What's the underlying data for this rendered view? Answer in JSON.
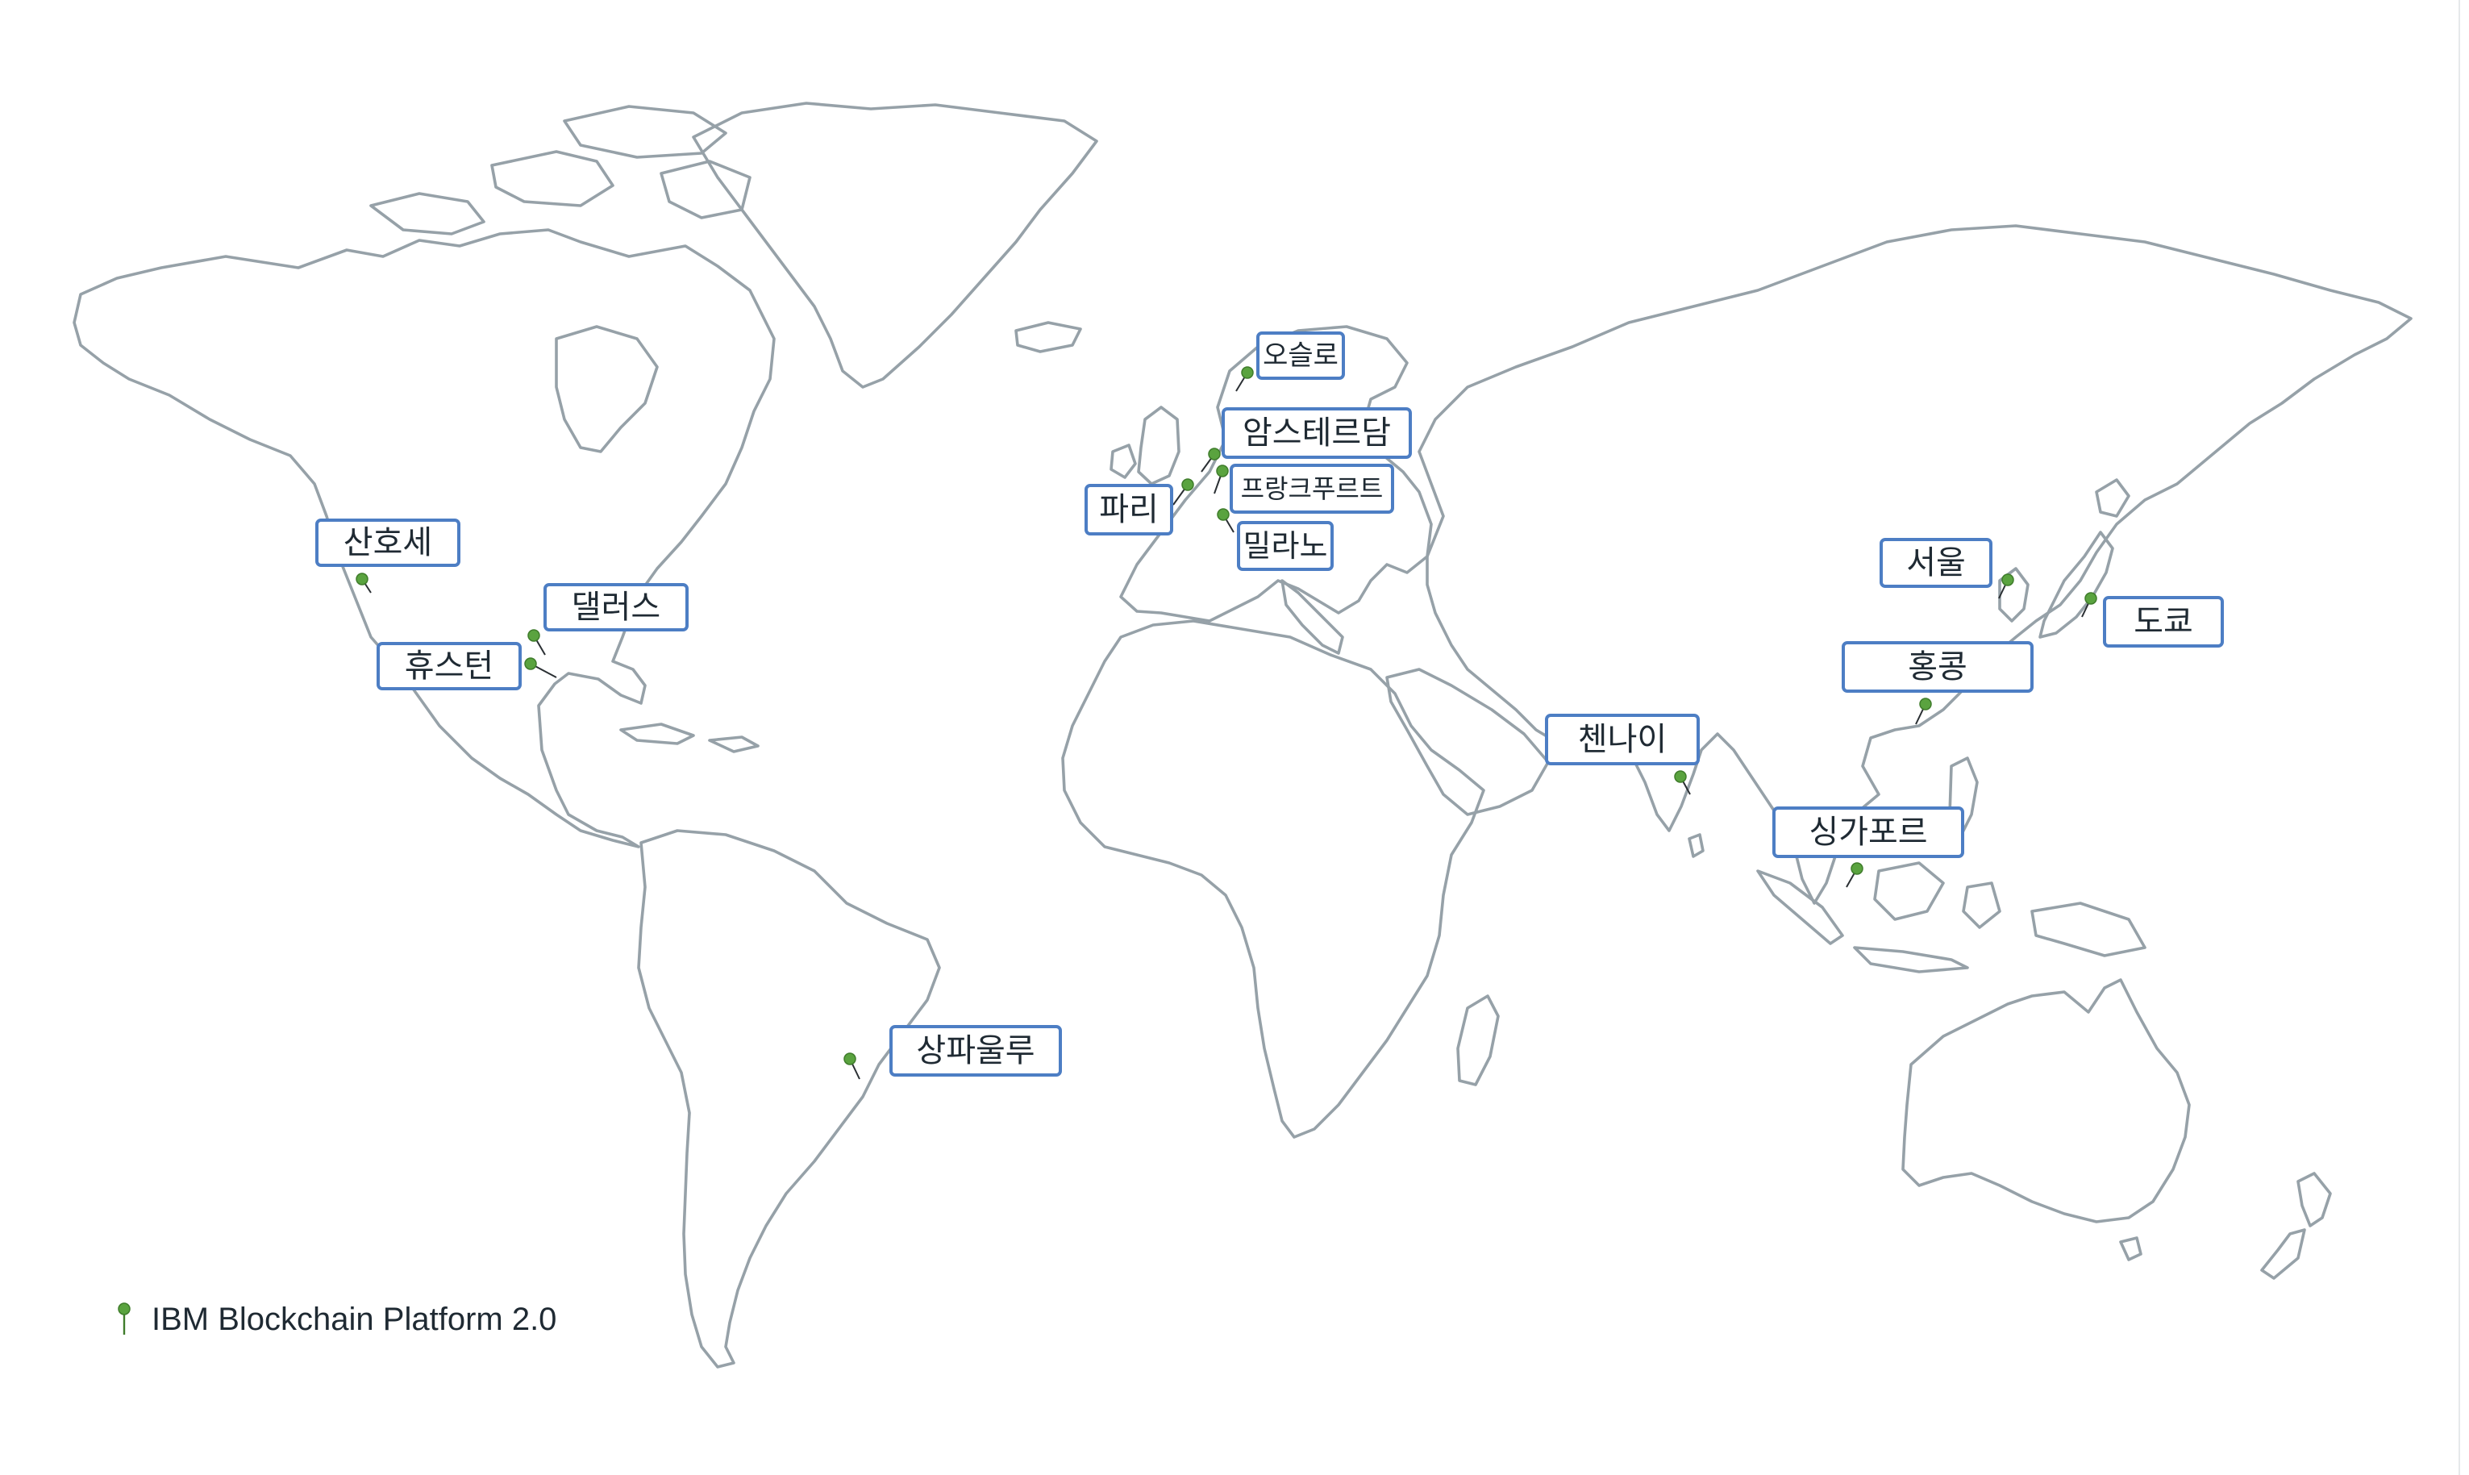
{
  "legend": {
    "label": "IBM Blockchain Platform 2.0",
    "marker_icon": "pin-icon",
    "marker_color": "#5aa33f"
  },
  "colors": {
    "land_outline": "#96a1a8",
    "label_border": "#4d7ec4",
    "pin": "#5aa33f",
    "text": "#1f2a33"
  },
  "cities": [
    {
      "id": "san-jose",
      "name": "산호세"
    },
    {
      "id": "dallas",
      "name": "댈러스"
    },
    {
      "id": "houston",
      "name": "휴스턴"
    },
    {
      "id": "sao-paulo",
      "name": "상파울루"
    },
    {
      "id": "oslo",
      "name": "오슬로"
    },
    {
      "id": "amsterdam",
      "name": "암스테르담"
    },
    {
      "id": "frankfurt",
      "name": "프랑크푸르트"
    },
    {
      "id": "paris",
      "name": "파리"
    },
    {
      "id": "milan",
      "name": "밀라노"
    },
    {
      "id": "chennai",
      "name": "첸나이"
    },
    {
      "id": "singapore",
      "name": "싱가포르"
    },
    {
      "id": "hong-kong",
      "name": "홍콩"
    },
    {
      "id": "seoul",
      "name": "서울"
    },
    {
      "id": "tokyo",
      "name": "도쿄"
    }
  ]
}
